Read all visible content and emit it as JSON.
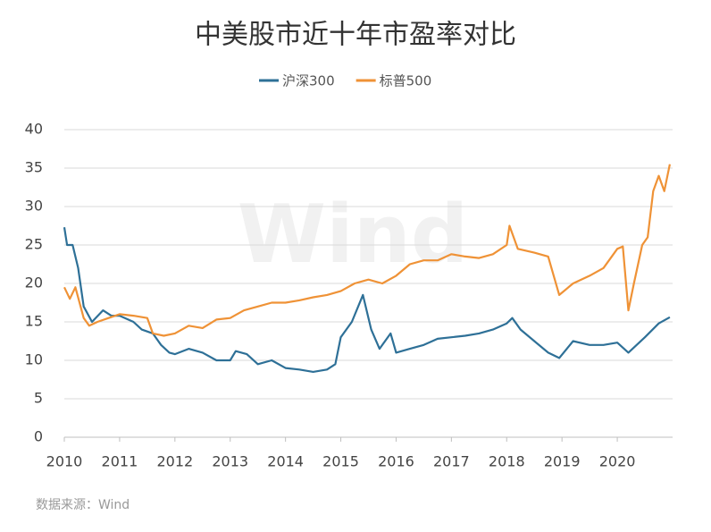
{
  "chart_data": {
    "type": "line",
    "title": "中美股市近十年市盈率对比",
    "source": "数据来源：Wind",
    "watermark": "Wind",
    "xlim": [
      2010,
      2021
    ],
    "xticks": [
      2010,
      2011,
      2012,
      2013,
      2014,
      2015,
      2016,
      2017,
      2018,
      2019,
      2020
    ],
    "ylim": [
      0,
      40
    ],
    "yticks": [
      0,
      5,
      10,
      15,
      20,
      25,
      30,
      35,
      40
    ],
    "grid": true,
    "series": [
      {
        "name": "沪深300",
        "color": "#2e7097",
        "x": [
          2010.0,
          2010.05,
          2010.15,
          2010.25,
          2010.35,
          2010.5,
          2010.7,
          2010.85,
          2011.0,
          2011.25,
          2011.4,
          2011.6,
          2011.75,
          2011.9,
          2012.0,
          2012.25,
          2012.5,
          2012.75,
          2013.0,
          2013.1,
          2013.3,
          2013.5,
          2013.75,
          2014.0,
          2014.25,
          2014.5,
          2014.75,
          2014.9,
          2015.0,
          2015.2,
          2015.4,
          2015.55,
          2015.7,
          2015.9,
          2016.0,
          2016.25,
          2016.5,
          2016.75,
          2017.0,
          2017.25,
          2017.5,
          2017.75,
          2018.0,
          2018.1,
          2018.25,
          2018.5,
          2018.75,
          2018.95,
          2019.2,
          2019.5,
          2019.75,
          2020.0,
          2020.2,
          2020.5,
          2020.75,
          2020.95
        ],
        "values": [
          27.3,
          25,
          25,
          22,
          17,
          15,
          16.5,
          15.8,
          15.8,
          15,
          14,
          13.5,
          12,
          11,
          10.8,
          11.5,
          11,
          10,
          10,
          11.2,
          10.8,
          9.5,
          10,
          9,
          8.8,
          8.5,
          8.8,
          9.5,
          13,
          15,
          18.5,
          14,
          11.5,
          13.5,
          11,
          11.5,
          12,
          12.8,
          13,
          13.2,
          13.5,
          14,
          14.8,
          15.5,
          14,
          12.5,
          11,
          10.3,
          12.5,
          12,
          12,
          12.3,
          11,
          13,
          14.8,
          15.6
        ]
      },
      {
        "name": "标普500",
        "color": "#ef9236",
        "x": [
          2010.0,
          2010.1,
          2010.2,
          2010.35,
          2010.45,
          2010.6,
          2010.8,
          2011.0,
          2011.25,
          2011.5,
          2011.6,
          2011.8,
          2012.0,
          2012.25,
          2012.5,
          2012.75,
          2013.0,
          2013.25,
          2013.5,
          2013.75,
          2014.0,
          2014.25,
          2014.5,
          2014.75,
          2015.0,
          2015.25,
          2015.5,
          2015.75,
          2016.0,
          2016.25,
          2016.5,
          2016.75,
          2017.0,
          2017.25,
          2017.5,
          2017.75,
          2018.0,
          2018.05,
          2018.2,
          2018.5,
          2018.75,
          2018.85,
          2018.95,
          2019.2,
          2019.5,
          2019.75,
          2020.0,
          2020.1,
          2020.2,
          2020.3,
          2020.45,
          2020.55,
          2020.65,
          2020.75,
          2020.85,
          2020.95
        ],
        "values": [
          19.5,
          18,
          19.5,
          15.5,
          14.5,
          15,
          15.5,
          16,
          15.8,
          15.5,
          13.5,
          13.2,
          13.5,
          14.5,
          14.2,
          15.3,
          15.5,
          16.5,
          17,
          17.5,
          17.5,
          17.8,
          18.2,
          18.5,
          19,
          20,
          20.5,
          20,
          21,
          22.5,
          23,
          23,
          23.8,
          23.5,
          23.3,
          23.8,
          25,
          27.5,
          24.5,
          24,
          23.5,
          21,
          18.5,
          20,
          21,
          22,
          24.5,
          24.8,
          16.5,
          20,
          25,
          26,
          32,
          34,
          32,
          35.5
        ]
      }
    ]
  }
}
